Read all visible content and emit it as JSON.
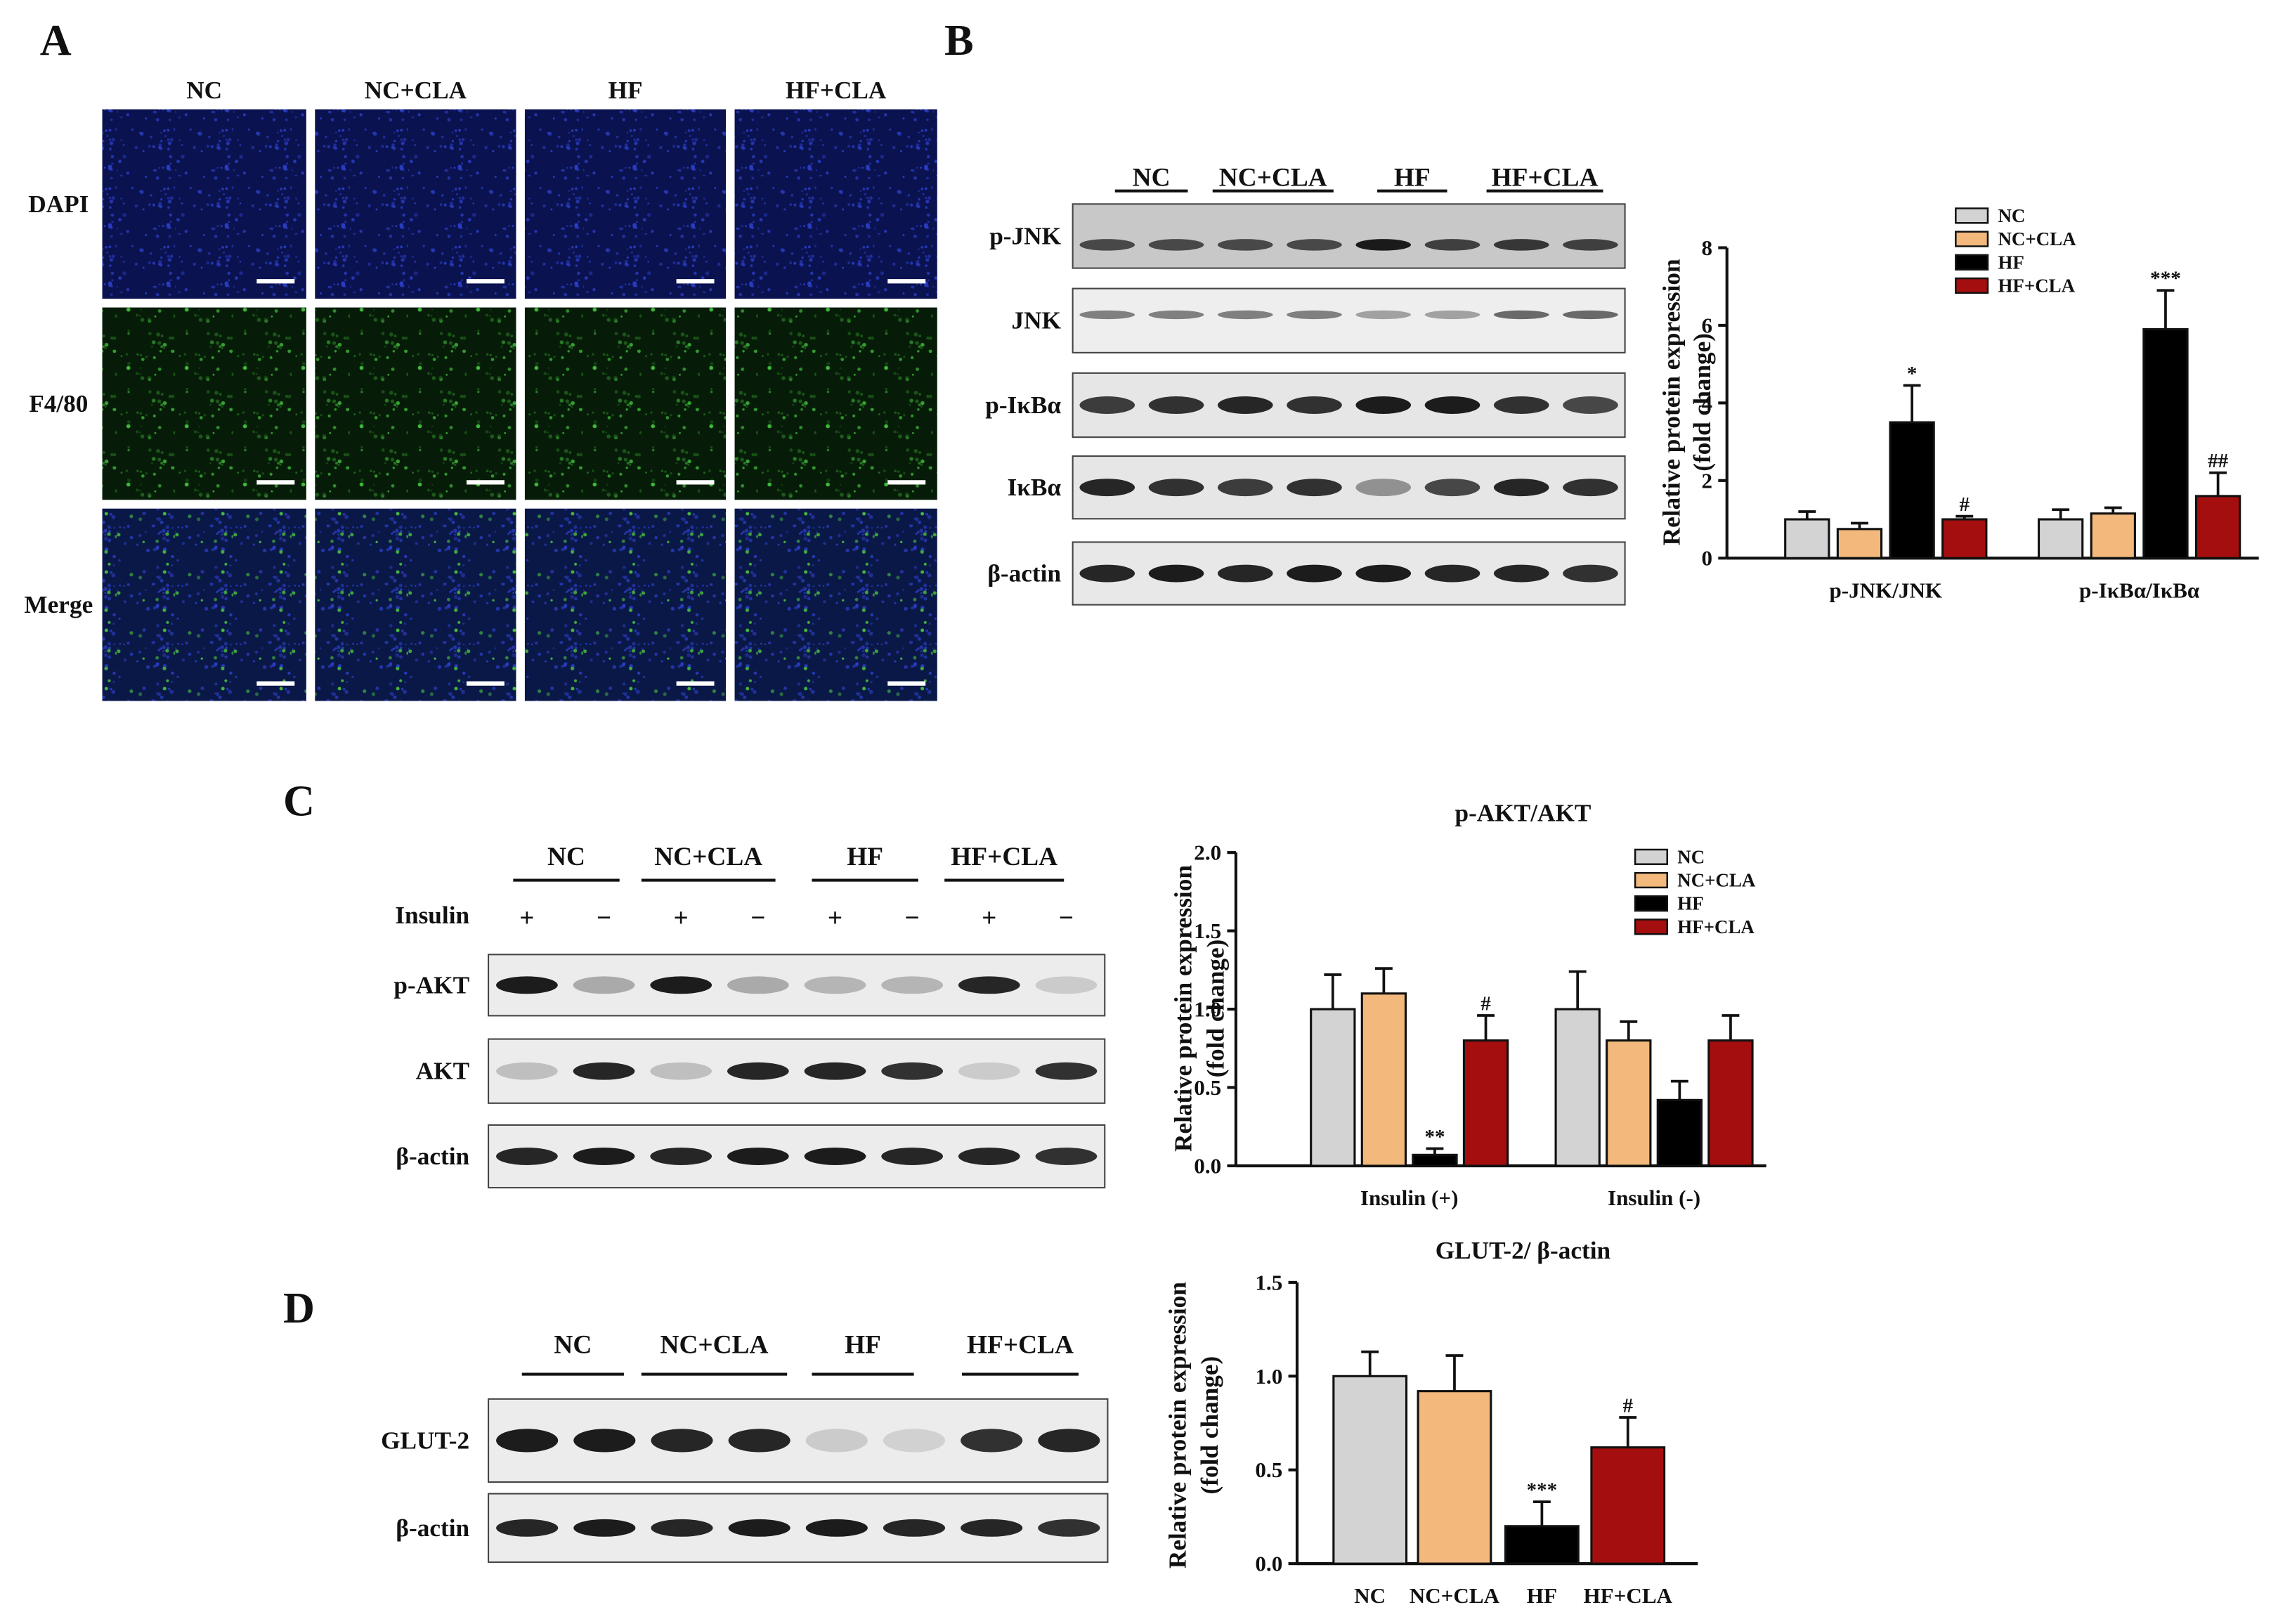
{
  "panel_a": {
    "label": "A",
    "columns": [
      "NC",
      "NC+CLA",
      "HF",
      "HF+CLA"
    ],
    "rows": [
      "DAPI",
      "F4/80",
      "Merge"
    ]
  },
  "panel_b": {
    "label": "B",
    "groups": [
      "NC",
      "NC+CLA",
      "HF",
      "HF+CLA"
    ],
    "rows": [
      "p-JNK",
      "JNK",
      "p-IκBα",
      "IκBα",
      "β-actin"
    ]
  },
  "panel_c": {
    "label": "C",
    "groups": [
      "NC",
      "NC+CLA",
      "HF",
      "HF+CLA"
    ],
    "insulin_label": "Insulin",
    "insulin_signs": [
      "+",
      "−",
      "+",
      "−",
      "+",
      "−",
      "+",
      "−"
    ],
    "rows": [
      "p-AKT",
      "AKT",
      "β-actin"
    ]
  },
  "panel_d": {
    "label": "D",
    "groups": [
      "NC",
      "NC+CLA",
      "HF",
      "HF+CLA"
    ],
    "rows": [
      "GLUT-2",
      "β-actin"
    ]
  },
  "chart_data": [
    {
      "type": "bar",
      "y_label": [
        "Relative protein expression",
        "(fold change)"
      ],
      "categories": [
        "p-JNK/JNK",
        "p-IκBα/IκBα"
      ],
      "series": [
        {
          "name": "NC",
          "color": "#d3d3d3",
          "values": [
            1.0,
            1.0
          ],
          "errors": [
            0.2,
            0.25
          ],
          "annotations": [
            null,
            null
          ]
        },
        {
          "name": "NC+CLA",
          "color": "#f2b87c",
          "values": [
            0.75,
            1.15
          ],
          "errors": [
            0.15,
            0.15
          ],
          "annotations": [
            null,
            null
          ]
        },
        {
          "name": "HF",
          "color": "#000000",
          "values": [
            3.5,
            5.9
          ],
          "errors": [
            0.95,
            1.0
          ],
          "annotations": [
            "*",
            "***"
          ]
        },
        {
          "name": "HF+CLA",
          "color": "#a50e0e",
          "values": [
            1.0,
            1.6
          ],
          "errors": [
            0.08,
            0.6
          ],
          "annotations": [
            "#",
            "##"
          ]
        }
      ],
      "ylim": [
        0,
        8
      ],
      "yticks": [
        0,
        2,
        4,
        6,
        8
      ],
      "legend": "upper right"
    },
    {
      "type": "bar",
      "title": "p-AKT/AKT",
      "y_label": [
        "Relative protein expression",
        "(fold change)"
      ],
      "categories": [
        "Insulin (+)",
        "Insulin (-)"
      ],
      "series": [
        {
          "name": "NC",
          "color": "#d3d3d3",
          "values": [
            1.0,
            1.0
          ],
          "errors": [
            0.22,
            0.24
          ],
          "annotations": [
            null,
            null
          ]
        },
        {
          "name": "NC+CLA",
          "color": "#f2b87c",
          "values": [
            1.1,
            0.8
          ],
          "errors": [
            0.16,
            0.12
          ],
          "annotations": [
            null,
            null
          ]
        },
        {
          "name": "HF",
          "color": "#000000",
          "values": [
            0.07,
            0.42
          ],
          "errors": [
            0.04,
            0.12
          ],
          "annotations": [
            "**",
            null
          ]
        },
        {
          "name": "HF+CLA",
          "color": "#a50e0e",
          "values": [
            0.8,
            0.8
          ],
          "errors": [
            0.16,
            0.16
          ],
          "annotations": [
            "#",
            null
          ]
        }
      ],
      "ylim": [
        0,
        2
      ],
      "yticks": [
        {
          "value": 0,
          "label": "0.0"
        },
        {
          "value": 0.5,
          "label": "0.5"
        },
        {
          "value": 1,
          "label": "1.0"
        },
        {
          "value": 1.5,
          "label": "1.5"
        },
        {
          "value": 2,
          "label": "2.0"
        }
      ],
      "legend": "upper right"
    },
    {
      "type": "bar",
      "title": "GLUT-2/ β-actin",
      "y_label": [
        "Relative protein expression",
        "(fold change)"
      ],
      "categories": [
        "NC",
        "NC+CLA",
        "HF",
        "HF+CLA"
      ],
      "values": [
        1.0,
        0.92,
        0.2,
        0.62
      ],
      "errors": [
        0.13,
        0.19,
        0.13,
        0.16
      ],
      "colors": [
        "#d3d3d3",
        "#f2b87c",
        "#000000",
        "#a50e0e"
      ],
      "annotations": [
        null,
        null,
        "***",
        "#"
      ],
      "ylim": [
        0,
        1.5
      ],
      "yticks": [
        {
          "value": 0,
          "label": "0.0"
        },
        {
          "value": 0.5,
          "label": "0.5"
        },
        {
          "value": 1,
          "label": "1.0"
        },
        {
          "value": 1.5,
          "label": "1.5"
        }
      ]
    }
  ]
}
